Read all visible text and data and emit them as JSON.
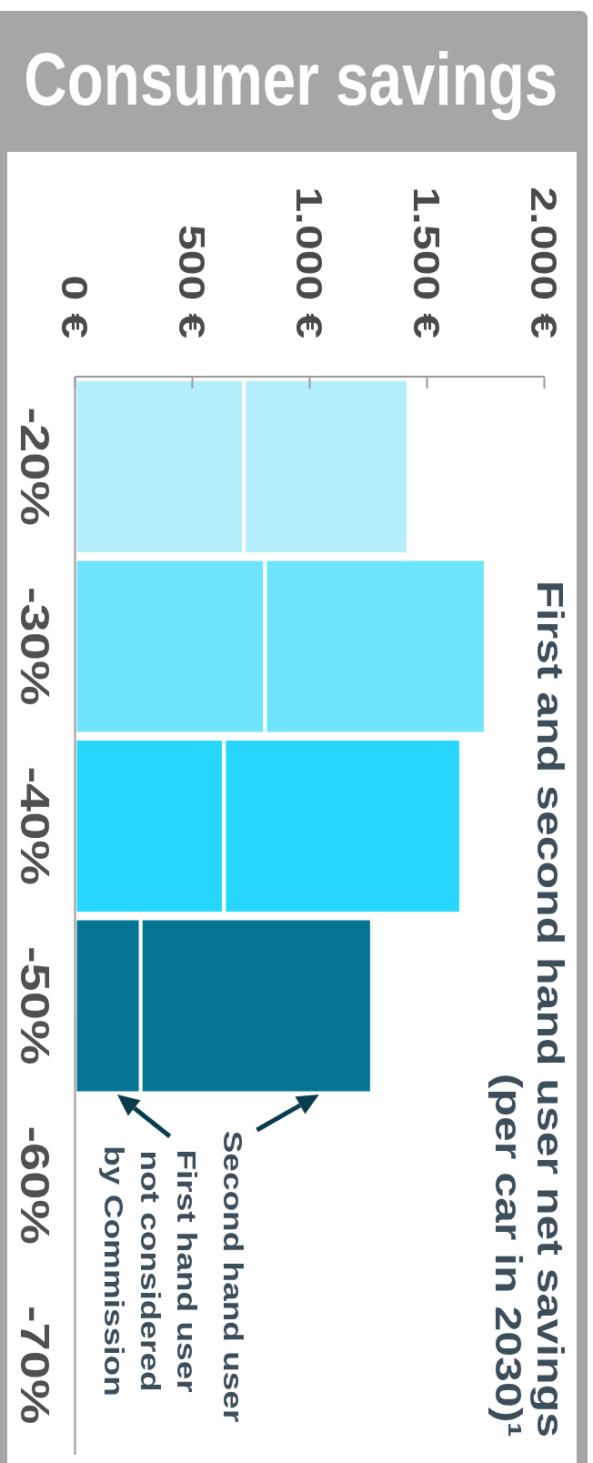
{
  "chart_data": {
    "type": "bar",
    "orientation": "horizontal",
    "stacked": true,
    "title": "Consumer savings",
    "subtitle": "First and second hand user net savings (per car in 2030)¹",
    "categories": [
      "-20%",
      "-30%",
      "-40%",
      "-50%",
      "-60%",
      "-70%"
    ],
    "series": [
      {
        "values": [
          720,
          810,
          635,
          280,
          null,
          null
        ],
        "colors": [
          "#b2effa",
          "#6fe4fd",
          "#28d7fd",
          "#047694",
          null,
          null
        ]
      },
      {
        "values": [
          700,
          940,
          1010,
          985,
          null,
          null
        ],
        "colors": [
          "#b2effa",
          "#6fe4fd",
          "#28d7fd",
          "#047694",
          null,
          null
        ]
      }
    ],
    "xlim": [
      0,
      2000
    ],
    "xticks": [
      {
        "value": 0,
        "label": "0 €"
      },
      {
        "value": 500,
        "label": "500 €"
      },
      {
        "value": 1000,
        "label": "1.000 €"
      },
      {
        "value": 1500,
        "label": "1.500 €"
      },
      {
        "value": 2000,
        "label": "2.000 €"
      }
    ],
    "annotations": [
      "Second hand user",
      "First hand user\nnot considered\nby Commission"
    ]
  }
}
